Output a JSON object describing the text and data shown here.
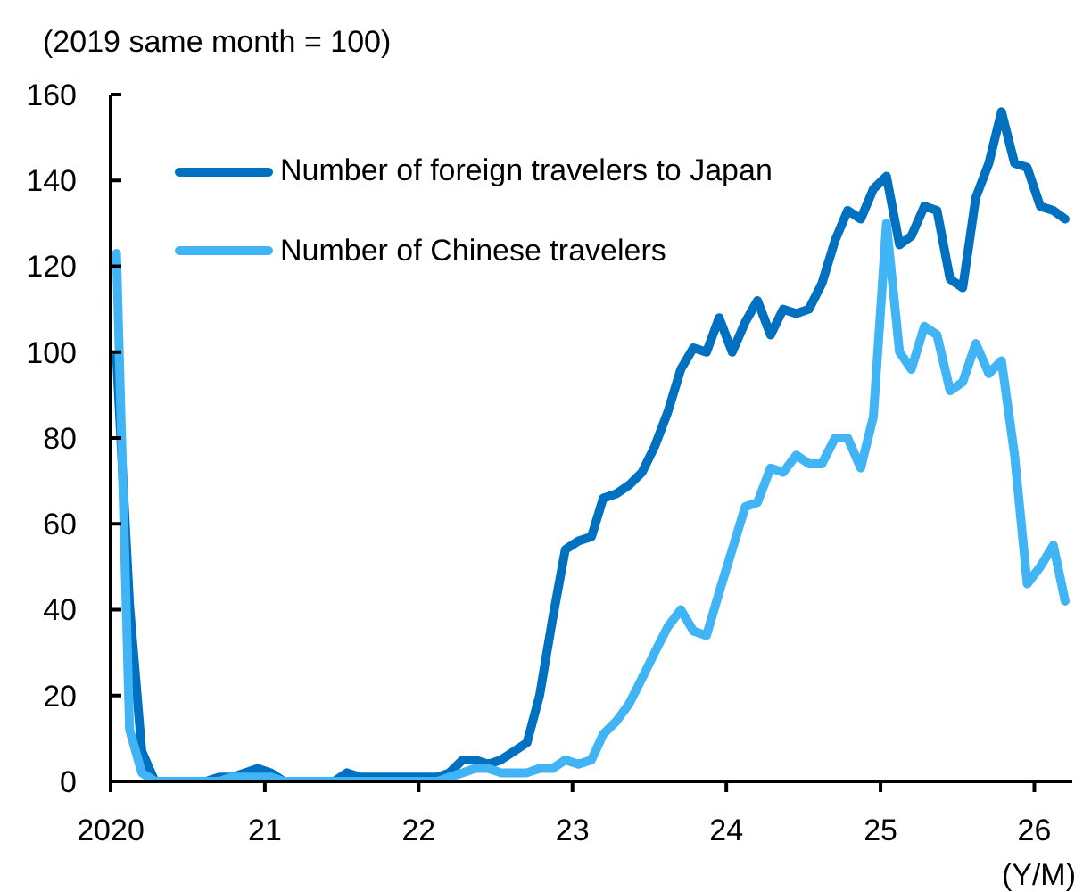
{
  "chart_data": {
    "type": "line",
    "ylabel": "(2019 same month = 100)",
    "xlabel": "(Y/M)",
    "x": [
      "2020-01-15",
      "2020-02-15",
      "2020-03-15",
      "2020-04-15",
      "2020-05-15",
      "2020-06-15",
      "2020-07-15",
      "2020-08-15",
      "2020-09-15",
      "2020-10-15",
      "2020-11-15",
      "2020-12-15",
      "2021-01-15",
      "2021-02-15",
      "2021-03-15",
      "2021-04-15",
      "2021-05-15",
      "2021-06-15",
      "2021-07-15",
      "2021-08-15",
      "2021-09-15",
      "2021-10-15",
      "2021-11-15",
      "2021-12-15",
      "2022-01-15",
      "2022-02-15",
      "2022-03-15",
      "2022-04-15",
      "2022-05-15",
      "2022-06-15",
      "2022-07-15",
      "2022-08-15",
      "2022-09-15",
      "2022-10-15",
      "2022-11-15",
      "2022-12-15",
      "2023-01-15",
      "2023-02-15",
      "2023-03-15",
      "2023-04-15",
      "2023-05-15",
      "2023-06-15",
      "2023-07-15",
      "2023-08-15",
      "2023-09-15",
      "2023-10-15",
      "2023-11-15",
      "2023-12-15",
      "2024-01-15",
      "2024-02-15",
      "2024-03-15",
      "2024-04-15",
      "2024-05-15",
      "2024-06-15",
      "2024-07-15",
      "2024-08-15",
      "2024-09-15",
      "2024-10-15",
      "2024-11-15",
      "2024-12-15",
      "2025-01-15",
      "2025-02-15",
      "2025-03-15",
      "2025-04-15",
      "2025-05-15",
      "2025-06-15",
      "2025-07-15",
      "2025-08-15",
      "2025-09-15",
      "2025-10-15",
      "2025-11-15",
      "2025-12-15",
      "2026-01-15",
      "2026-02-15",
      "2026-03-15"
    ],
    "xlim": [
      "2020-01-01",
      "2026-04-01"
    ],
    "xticks": [
      {
        "value": "2020-01-01",
        "label": "2020"
      },
      {
        "value": "2021-01-01",
        "label": "21"
      },
      {
        "value": "2022-01-01",
        "label": "22"
      },
      {
        "value": "2023-01-01",
        "label": "23"
      },
      {
        "value": "2024-01-01",
        "label": "24"
      },
      {
        "value": "2025-01-01",
        "label": "25"
      },
      {
        "value": "2026-01-01",
        "label": "26"
      }
    ],
    "ylim": [
      0,
      160
    ],
    "yticks": [
      0,
      20,
      40,
      60,
      80,
      100,
      120,
      140,
      160
    ],
    "legend": "top left",
    "series": [
      {
        "name": "Number of foreign travelers to Japan",
        "color": "#0070c0",
        "values": [
          99,
          41,
          7,
          0,
          0,
          0,
          0,
          0,
          1,
          1,
          2,
          3,
          2,
          0,
          0,
          0,
          0,
          0,
          2,
          1,
          1,
          1,
          1,
          1,
          1,
          1,
          2,
          5,
          5,
          4,
          5,
          7,
          9,
          20,
          38,
          54,
          56,
          57,
          66,
          67,
          69,
          72,
          78,
          86,
          96,
          101,
          100,
          108,
          100,
          107,
          112,
          104,
          110,
          109,
          110,
          116,
          126,
          133,
          131,
          138,
          141,
          125,
          127,
          134,
          133,
          117,
          115,
          136,
          144,
          156,
          144,
          143,
          134,
          133,
          131
        ]
      },
      {
        "name": "Number of Chinese travelers",
        "color": "#41b4f5",
        "values": [
          123,
          12,
          2,
          0,
          0,
          0,
          0,
          0,
          0,
          1,
          1,
          1,
          1,
          0,
          0,
          0,
          0,
          0,
          0,
          0,
          0,
          0,
          0,
          0,
          0,
          0,
          1,
          2,
          3,
          3,
          2,
          2,
          2,
          3,
          3,
          5,
          4,
          5,
          11,
          14,
          18,
          24,
          30,
          36,
          40,
          35,
          34,
          44,
          54,
          64,
          65,
          73,
          72,
          76,
          74,
          74,
          80,
          80,
          73,
          85,
          130,
          100,
          96,
          106,
          104,
          91,
          93,
          102,
          95,
          98,
          76,
          46,
          50,
          55,
          42
        ]
      }
    ]
  }
}
